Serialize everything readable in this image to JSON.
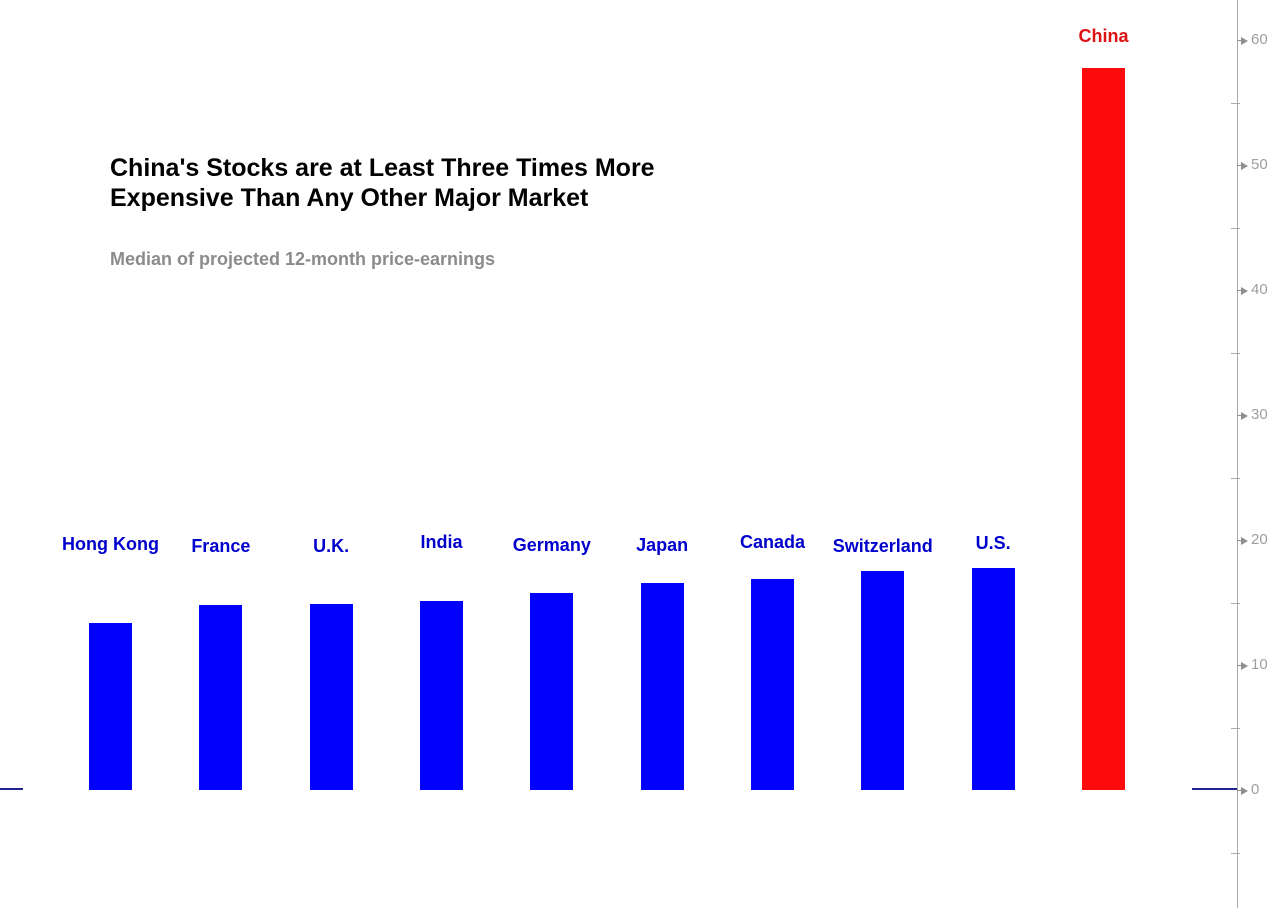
{
  "header": {
    "title_line1": "China's Stocks are at Least Three Times More",
    "title_line2": "Expensive Than Any Other Major Market",
    "subtitle": "Median of projected 12-month price-earnings"
  },
  "chart_data": {
    "type": "bar",
    "title": "China's Stocks are at Least Three Times More Expensive Than Any Other Major Market",
    "subtitle": "Median of projected 12-month price-earnings",
    "categories": [
      "Hong Kong",
      "France",
      "U.K.",
      "India",
      "Germany",
      "Japan",
      "Canada",
      "Switzerland",
      "U.S.",
      "China"
    ],
    "values": [
      13.4,
      14.8,
      14.9,
      15.1,
      15.8,
      16.6,
      16.9,
      17.5,
      17.8,
      57.8
    ],
    "bars": [
      {
        "label": "Hong Kong",
        "value": 13.4,
        "color_key": "blue"
      },
      {
        "label": "France",
        "value": 14.8,
        "color_key": "blue"
      },
      {
        "label": "U.K.",
        "value": 14.9,
        "color_key": "blue"
      },
      {
        "label": "India",
        "value": 15.1,
        "color_key": "blue"
      },
      {
        "label": "Germany",
        "value": 15.8,
        "color_key": "blue"
      },
      {
        "label": "Japan",
        "value": 16.6,
        "color_key": "blue"
      },
      {
        "label": "Canada",
        "value": 16.9,
        "color_key": "blue"
      },
      {
        "label": "Switzerland",
        "value": 17.5,
        "color_key": "blue"
      },
      {
        "label": "U.S.",
        "value": 17.8,
        "color_key": "blue"
      },
      {
        "label": "China",
        "value": 57.8,
        "color_key": "red"
      }
    ],
    "xlabel": "",
    "ylabel": "",
    "ylim": [
      -9,
      63
    ],
    "grid": "off",
    "legend": "none",
    "y_axis": {
      "side": "right",
      "major_ticks": [
        60,
        50,
        40,
        30,
        20,
        10,
        0
      ],
      "minor_ticks": [
        55,
        45,
        35,
        25,
        15,
        5,
        -5
      ],
      "tick_label_color": "#9e9e9e",
      "axis_color": "#a9a9a9"
    },
    "colors": {
      "bar_blue": "#0000fc",
      "bar_red": "#fb0b0b",
      "label_blue": "#0000cd",
      "label_red": "#de1212",
      "baseline_navy": "#22228e"
    }
  }
}
